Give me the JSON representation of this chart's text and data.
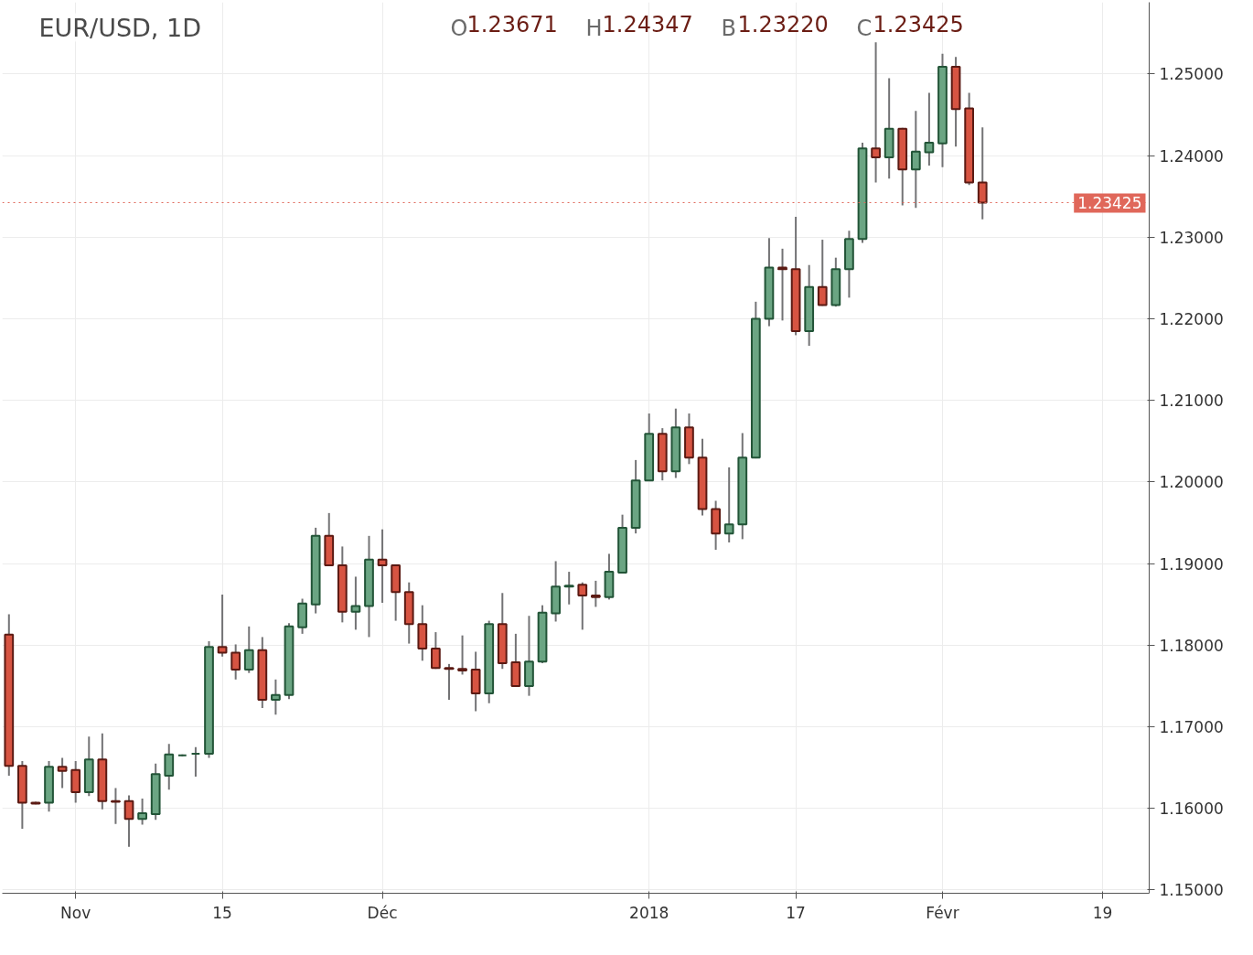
{
  "chart_data": {
    "type": "candlestick",
    "title": "EUR/USD, 1D",
    "annotations": [
      "O1.23671",
      "H1.24347",
      "B1.23220",
      "C1.23425"
    ],
    "categories": [
      null,
      null,
      null,
      null,
      null,
      "Nov",
      null,
      null,
      null,
      null,
      null,
      null,
      null,
      null,
      null,
      null,
      "15",
      null,
      null,
      null,
      null,
      null,
      null,
      null,
      null,
      null,
      null,
      null,
      "Déc",
      null,
      null,
      null,
      null,
      null,
      null,
      null,
      null,
      null,
      null,
      null,
      null,
      null,
      null,
      null,
      null,
      null,
      null,
      null,
      "2018",
      null,
      null,
      null,
      null,
      null,
      null,
      null,
      null,
      null,
      null,
      "17",
      null,
      null,
      null,
      null,
      null,
      null,
      null,
      null,
      null,
      null,
      "Févr",
      null,
      null,
      null,
      null,
      null,
      null,
      null,
      null,
      null,
      null,
      null,
      "19",
      null,
      null,
      null
    ],
    "ohlc": [
      [
        1.1813,
        1.1838,
        1.164,
        1.1652
      ],
      [
        1.1652,
        1.1658,
        1.1575,
        1.1607
      ],
      [
        1.1607,
        1.1608,
        1.1605,
        1.1606
      ],
      [
        1.1607,
        1.1658,
        1.1596,
        1.1651
      ],
      [
        1.1651,
        1.1662,
        1.1625,
        1.1646
      ],
      [
        1.1647,
        1.1658,
        1.1607,
        1.162
      ],
      [
        1.162,
        1.1688,
        1.1615,
        1.166
      ],
      [
        1.166,
        1.1692,
        1.1599,
        1.1609
      ],
      [
        1.1609,
        1.1625,
        1.1581,
        1.1608
      ],
      [
        1.1609,
        1.1616,
        1.1553,
        1.1587
      ],
      [
        1.1587,
        1.1612,
        1.158,
        1.1594
      ],
      [
        1.1593,
        1.1655,
        1.1586,
        1.1642
      ],
      [
        1.164,
        1.1679,
        1.1623,
        1.1666
      ],
      [
        1.1665,
        1.1666,
        1.1664,
        1.1665
      ],
      [
        1.1667,
        1.1675,
        1.1639,
        1.1667
      ],
      [
        1.1667,
        1.1805,
        1.1662,
        1.1798
      ],
      [
        1.1798,
        1.1862,
        1.1786,
        1.1791
      ],
      [
        1.1791,
        1.1801,
        1.1758,
        1.177
      ],
      [
        1.177,
        1.1823,
        1.1766,
        1.1794
      ],
      [
        1.1794,
        1.181,
        1.1723,
        1.1733
      ],
      [
        1.1733,
        1.1758,
        1.1715,
        1.1739
      ],
      [
        1.1739,
        1.1827,
        1.1734,
        1.1823
      ],
      [
        1.1822,
        1.1857,
        1.1814,
        1.1851
      ],
      [
        1.185,
        1.1944,
        1.1839,
        1.1934
      ],
      [
        1.1934,
        1.1962,
        1.1897,
        1.1898
      ],
      [
        1.1898,
        1.1921,
        1.1828,
        1.1841
      ],
      [
        1.1841,
        1.1884,
        1.1819,
        1.1848
      ],
      [
        1.1848,
        1.1934,
        1.181,
        1.1905
      ],
      [
        1.1905,
        1.1942,
        1.1852,
        1.1898
      ],
      [
        1.1898,
        1.1899,
        1.183,
        1.1865
      ],
      [
        1.1865,
        1.1877,
        1.1802,
        1.1826
      ],
      [
        1.1826,
        1.1849,
        1.1781,
        1.1796
      ],
      [
        1.1796,
        1.1816,
        1.1771,
        1.1772
      ],
      [
        1.1772,
        1.1777,
        1.1733,
        1.1771
      ],
      [
        1.1771,
        1.1812,
        1.1764,
        1.1769
      ],
      [
        1.177,
        1.1792,
        1.1719,
        1.1741
      ],
      [
        1.1741,
        1.183,
        1.1729,
        1.1826
      ],
      [
        1.1826,
        1.1864,
        1.1771,
        1.1778
      ],
      [
        1.1779,
        1.1814,
        1.175,
        1.175
      ],
      [
        1.175,
        1.1836,
        1.1738,
        1.178
      ],
      [
        1.178,
        1.1849,
        1.1778,
        1.184
      ],
      [
        1.1839,
        1.1903,
        1.1829,
        1.1872
      ],
      [
        1.1872,
        1.189,
        1.185,
        1.1873
      ],
      [
        1.1874,
        1.1877,
        1.1819,
        1.1861
      ],
      [
        1.1861,
        1.1879,
        1.1847,
        1.1859
      ],
      [
        1.1859,
        1.1912,
        1.1856,
        1.189
      ],
      [
        1.1889,
        1.196,
        1.1888,
        1.1944
      ],
      [
        1.1944,
        1.2027,
        1.1937,
        1.2002
      ],
      [
        1.2002,
        1.2084,
        1.2001,
        1.2059
      ],
      [
        1.2059,
        1.2066,
        1.2002,
        1.2013
      ],
      [
        1.2013,
        1.209,
        1.2005,
        1.2067
      ],
      [
        1.2067,
        1.2084,
        1.2022,
        1.203
      ],
      [
        1.203,
        1.2053,
        1.1959,
        1.1967
      ],
      [
        1.1967,
        1.1977,
        1.1917,
        1.1937
      ],
      [
        1.1937,
        1.2018,
        1.1926,
        1.1948
      ],
      [
        1.1948,
        1.206,
        1.193,
        1.203
      ],
      [
        1.203,
        1.2221,
        1.2029,
        1.22
      ],
      [
        1.22,
        1.2299,
        1.2191,
        1.2263
      ],
      [
        1.2263,
        1.2286,
        1.2198,
        1.2261
      ],
      [
        1.2261,
        1.2325,
        1.218,
        1.2185
      ],
      [
        1.2185,
        1.2266,
        1.2167,
        1.2239
      ],
      [
        1.2239,
        1.2297,
        1.2216,
        1.2217
      ],
      [
        1.2217,
        1.2275,
        1.2215,
        1.2261
      ],
      [
        1.2261,
        1.2308,
        1.2226,
        1.2298
      ],
      [
        1.2298,
        1.2416,
        1.2293,
        1.2409
      ],
      [
        1.2409,
        1.2539,
        1.2367,
        1.2398
      ],
      [
        1.2398,
        1.2495,
        1.2372,
        1.2433
      ],
      [
        1.2433,
        1.2434,
        1.2339,
        1.2383
      ],
      [
        1.2383,
        1.2455,
        1.2336,
        1.2405
      ],
      [
        1.2404,
        1.2477,
        1.2388,
        1.2416
      ],
      [
        1.2415,
        1.2525,
        1.2386,
        1.2509
      ],
      [
        1.2509,
        1.2521,
        1.2411,
        1.2457
      ],
      [
        1.2458,
        1.2477,
        1.2364,
        1.2367
      ],
      [
        1.23671,
        1.24347,
        1.2322,
        1.23425
      ],
      null,
      null,
      null,
      null,
      null,
      null,
      null,
      null,
      null,
      null,
      null,
      null
    ],
    "ylim": [
      1.1496,
      1.2588
    ],
    "yticks": [
      {
        "value": 1.15,
        "label": "1.15000"
      },
      {
        "value": 1.16,
        "label": "1.16000"
      },
      {
        "value": 1.17,
        "label": "1.17000"
      },
      {
        "value": 1.18,
        "label": "1.18000"
      },
      {
        "value": 1.19,
        "label": "1.19000"
      },
      {
        "value": 1.2,
        "label": "1.20000"
      },
      {
        "value": 1.21,
        "label": "1.21000"
      },
      {
        "value": 1.22,
        "label": "1.22000"
      },
      {
        "value": 1.23,
        "label": "1.23000"
      },
      {
        "value": 1.24,
        "label": "1.24000"
      },
      {
        "value": 1.25,
        "label": "1.25000"
      }
    ],
    "ref_lines": [
      {
        "axis": "y",
        "value": 1.23425,
        "label": "1.23425",
        "color": "#e0675a",
        "line_style": "dotted"
      }
    ],
    "grid": true
  }
}
